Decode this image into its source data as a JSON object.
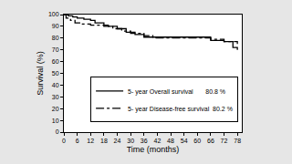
{
  "chart_data": {
    "type": "line",
    "x_label": "Time (months)",
    "y_label": "Survival (%)",
    "series": [
      {
        "name": "5- year Overall survival       80.8 %",
        "color": "#000000",
        "line_style": "solid",
        "x": [
          0,
          2,
          4,
          6,
          9,
          12,
          14,
          18,
          20,
          24,
          28,
          32,
          36,
          60,
          66,
          72,
          76,
          78
        ],
        "values": [
          100,
          99,
          98,
          97,
          96,
          95,
          93,
          91,
          90,
          88,
          85,
          83,
          80.8,
          80.8,
          78,
          77,
          72,
          70
        ]
      },
      {
        "name": "5- year Disease-free survival  80.2 %",
        "color": "#000000",
        "line_style": "dashdot",
        "x": [
          0,
          1,
          3,
          5,
          8,
          12,
          18,
          22,
          26,
          30,
          36,
          40,
          66,
          72,
          78
        ],
        "values": [
          100,
          97,
          95,
          93,
          92,
          91,
          90,
          88,
          86,
          84,
          82,
          80.2,
          79,
          77,
          75
        ]
      }
    ],
    "xlim": [
      0,
      80
    ],
    "xticks": [
      0,
      6,
      12,
      18,
      24,
      30,
      36,
      42,
      48,
      54,
      60,
      66,
      72,
      78
    ],
    "ylim": [
      0,
      100
    ],
    "yticks": [
      0,
      10,
      20,
      30,
      40,
      50,
      60,
      70,
      80,
      90,
      100
    ],
    "grid": false,
    "legend": "right"
  }
}
